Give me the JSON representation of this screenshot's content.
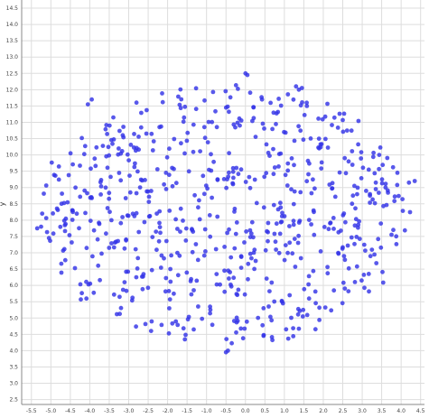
{
  "chart_data": {
    "type": "scatter",
    "title": "",
    "xlabel": "",
    "ylabel": "y",
    "xlim": [
      -5.75,
      4.6
    ],
    "ylim": [
      2.35,
      14.75
    ],
    "xticks": [
      "-5.5",
      "-5.0",
      "-4.5",
      "-4.0",
      "-3.5",
      "-3.0",
      "-2.5",
      "-2.0",
      "-1.5",
      "-1.0",
      "-0.5",
      "0.0",
      "0.5",
      "1.0",
      "1.5",
      "2.0",
      "2.5",
      "3.0",
      "3.5",
      "4.0",
      "4.5"
    ],
    "yticks": [
      "2.5",
      "3.0",
      "3.5",
      "4.0",
      "4.5",
      "5.0",
      "5.5",
      "6.0",
      "6.5",
      "7.0",
      "7.5",
      "8.0",
      "8.5",
      "9.0",
      "9.5",
      "10.0",
      "10.5",
      "11.0",
      "11.5",
      "12.0",
      "12.5",
      "13.0",
      "13.5",
      "14.0",
      "14.5"
    ],
    "grid": true,
    "legend": "none",
    "point_color": "#3333e6",
    "point_count": 680,
    "point_generator": {
      "center_x": -0.5,
      "center_y": 8.25,
      "radius_x": 4.9,
      "radius_y": 4.25,
      "seed": 20240611
    },
    "extra_points": [
      {
        "x": 4.2,
        "y": 9.15
      },
      {
        "x": 4.35,
        "y": 9.2
      },
      {
        "x": 3.35,
        "y": 8.95
      },
      {
        "x": 3.6,
        "y": 9.0
      },
      {
        "x": 3.1,
        "y": 8.9
      },
      {
        "x": 2.8,
        "y": 9.05
      },
      {
        "x": 2.65,
        "y": 9.8
      },
      {
        "x": 2.55,
        "y": 9.9
      },
      {
        "x": -5.35,
        "y": 7.75
      },
      {
        "x": -5.25,
        "y": 7.8
      },
      {
        "x": -5.05,
        "y": 7.45
      },
      {
        "x": -0.45,
        "y": 4.0
      },
      {
        "x": -0.5,
        "y": 3.95
      },
      {
        "x": 0.0,
        "y": 12.5
      },
      {
        "x": 0.05,
        "y": 12.45
      },
      {
        "x": 1.3,
        "y": 12.1
      },
      {
        "x": 1.45,
        "y": 12.05
      },
      {
        "x": -3.95,
        "y": 11.7
      },
      {
        "x": -4.05,
        "y": 11.55
      }
    ]
  }
}
